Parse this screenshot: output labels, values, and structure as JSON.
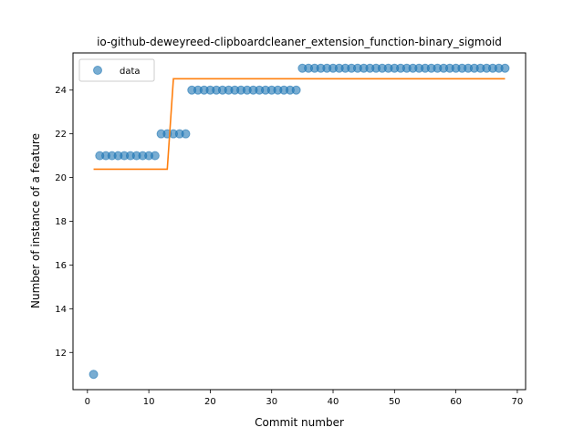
{
  "chart_data": {
    "type": "scatter",
    "title": "io-github-deweyreed-clipboardcleaner_extension_function-binary_sigmoid",
    "xlabel": "Commit number",
    "ylabel": "Number of instance of a feature",
    "xlim": [
      -2.35,
      71.35
    ],
    "ylim": [
      10.3,
      25.7
    ],
    "xticks": [
      0,
      10,
      20,
      30,
      40,
      50,
      60,
      70
    ],
    "yticks": [
      12,
      14,
      16,
      18,
      20,
      22,
      24
    ],
    "grid": false,
    "legend": {
      "position": "top-left",
      "entries": [
        "data"
      ]
    },
    "colors": {
      "data": "#1f77b4",
      "fit": "#ff7f0e"
    },
    "series": [
      {
        "name": "data",
        "kind": "scatter",
        "x": [
          1,
          2,
          3,
          4,
          5,
          6,
          7,
          8,
          9,
          10,
          11,
          12,
          13,
          14,
          15,
          16,
          17,
          18,
          19,
          20,
          21,
          22,
          23,
          24,
          25,
          26,
          27,
          28,
          29,
          30,
          31,
          32,
          33,
          34,
          35,
          36,
          37,
          38,
          39,
          40,
          41,
          42,
          43,
          44,
          45,
          46,
          47,
          48,
          49,
          50,
          51,
          52,
          53,
          54,
          55,
          56,
          57,
          58,
          59,
          60,
          61,
          62,
          63,
          64,
          65,
          66,
          67,
          68
        ],
        "y": [
          11,
          21,
          21,
          21,
          21,
          21,
          21,
          21,
          21,
          21,
          21,
          22,
          22,
          22,
          22,
          22,
          24,
          24,
          24,
          24,
          24,
          24,
          24,
          24,
          24,
          24,
          24,
          24,
          24,
          24,
          24,
          24,
          24,
          24,
          25,
          25,
          25,
          25,
          25,
          25,
          25,
          25,
          25,
          25,
          25,
          25,
          25,
          25,
          25,
          25,
          25,
          25,
          25,
          25,
          25,
          25,
          25,
          25,
          25,
          25,
          25,
          25,
          25,
          25,
          25,
          25,
          25,
          25
        ]
      },
      {
        "kind": "line",
        "x": [
          1,
          13,
          14,
          68
        ],
        "y": [
          20.38,
          20.38,
          24.52,
          24.52
        ]
      }
    ]
  }
}
